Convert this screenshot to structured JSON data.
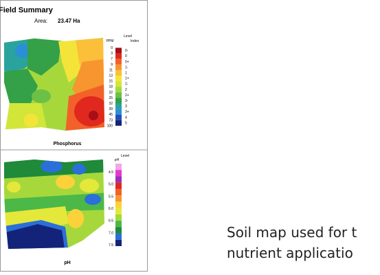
{
  "report": {
    "title": "Field Summary",
    "area_label": "Area:",
    "area_value": "23.47 Ha",
    "phosphorus": {
      "label": "Phosphorus",
      "legend_title": "Level",
      "ppm_title": "PPM",
      "index_title": "Index",
      "ppm": [
        "0",
        "3",
        "7",
        "9",
        "11",
        "13",
        "15",
        "18",
        "22",
        "25",
        "32",
        "39",
        "45",
        "73",
        "100"
      ],
      "index": [
        {
          "label": "0-",
          "color": "#a50f15"
        },
        {
          "label": "0",
          "color": "#e0281e"
        },
        {
          "label": "0+",
          "color": "#f2612a"
        },
        {
          "label": "1-",
          "color": "#f7952e"
        },
        {
          "label": "1",
          "color": "#fbbf3a"
        },
        {
          "label": "1+",
          "color": "#f4e43a"
        },
        {
          "label": "2-",
          "color": "#d2e63a"
        },
        {
          "label": "2",
          "color": "#a6d83c"
        },
        {
          "label": "2+",
          "color": "#6cc046"
        },
        {
          "label": "3-",
          "color": "#34a048"
        },
        {
          "label": "3",
          "color": "#2aa39e"
        },
        {
          "label": "3+",
          "color": "#2b8fd8"
        },
        {
          "label": "4",
          "color": "#1f4fb8"
        },
        {
          "label": "5",
          "color": "#14237a"
        }
      ]
    },
    "ph": {
      "label": "pH",
      "legend_title": "Level",
      "ph_title": "pH",
      "levels": [
        "4.5",
        "5.0",
        "5.5",
        "6.0",
        "6.5",
        "7.0",
        "7.5"
      ],
      "colors": [
        "#f4a6e6",
        "#e23ad0",
        "#9b30b8",
        "#e0281e",
        "#f2612a",
        "#f7952e",
        "#fbd23a",
        "#e4e83a",
        "#a6d83c",
        "#4cb848",
        "#1e8a3a",
        "#2b6fd8",
        "#14237a"
      ]
    }
  },
  "caption": {
    "line1": "Soil map used for t",
    "line2": "nutrient applicatio"
  }
}
